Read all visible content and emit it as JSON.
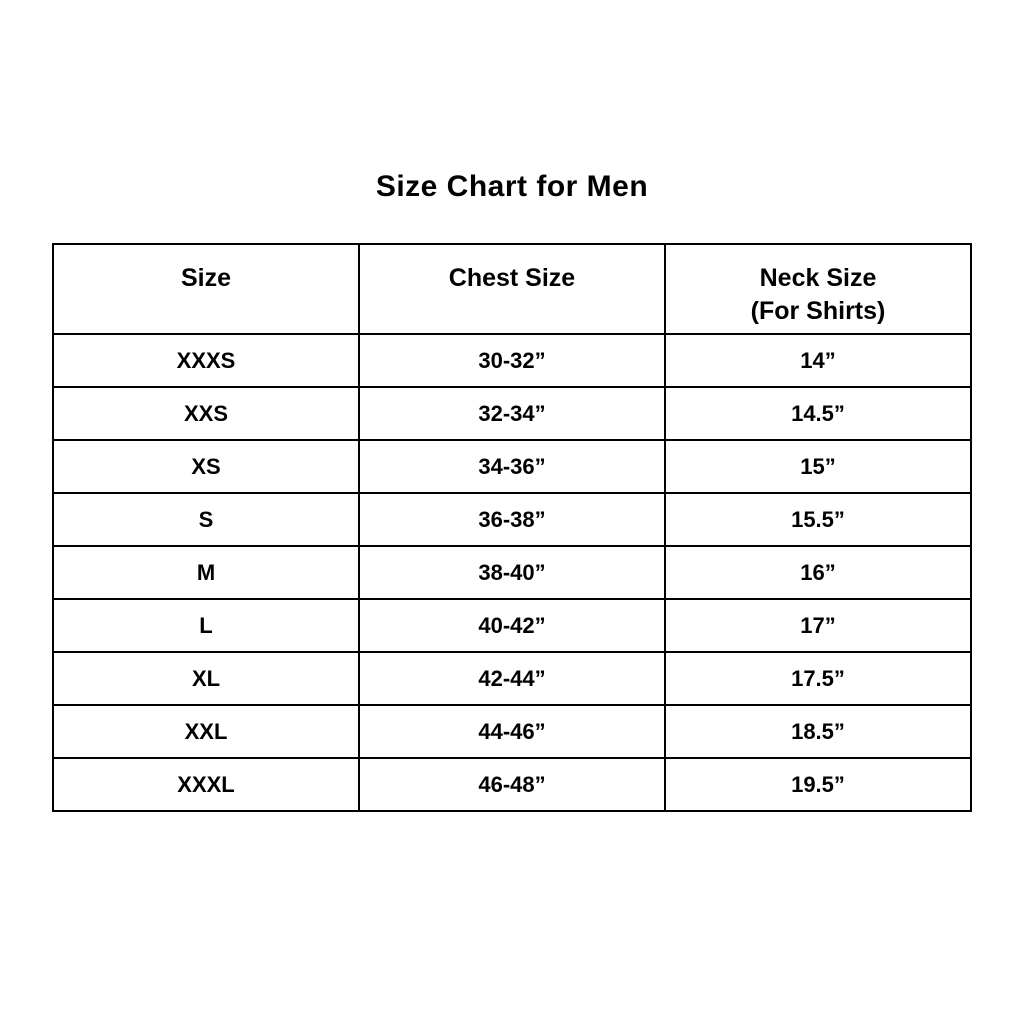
{
  "title": "Size Chart for Men",
  "header": {
    "size": "Size",
    "chest": "Chest Size",
    "neck_line1": "Neck Size",
    "neck_line2": "(For Shirts)"
  },
  "colors": {
    "background": "#ffffff",
    "text": "#000000",
    "border": "#000000"
  },
  "chart_data": {
    "type": "table",
    "title": "Size Chart for Men",
    "columns": [
      "Size",
      "Chest Size",
      "Neck Size (For Shirts)"
    ],
    "rows": [
      [
        "XXXS",
        "30-32”",
        "14”"
      ],
      [
        "XXS",
        "32-34”",
        "14.5”"
      ],
      [
        "XS",
        "34-36”",
        "15”"
      ],
      [
        "S",
        "36-38”",
        "15.5”"
      ],
      [
        "M",
        "38-40”",
        "16”"
      ],
      [
        "L",
        "40-42”",
        "17”"
      ],
      [
        "XL",
        "42-44”",
        "17.5”"
      ],
      [
        "XXL",
        "44-46”",
        "18.5”"
      ],
      [
        "XXXL",
        "46-48”",
        "19.5”"
      ]
    ]
  }
}
